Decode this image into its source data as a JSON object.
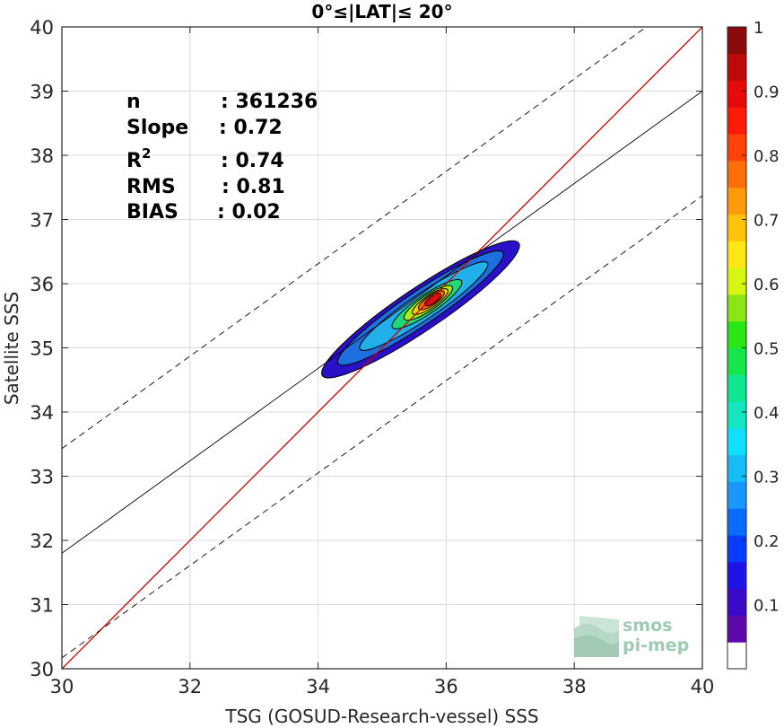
{
  "chart_data": {
    "type": "density-scatter",
    "title": "0°≤|LAT|≤ 20°",
    "xlabel": "TSG (GOSUD-Research-vessel) SSS",
    "ylabel": "Satellite SSS",
    "xlim": [
      30,
      40
    ],
    "ylim": [
      30,
      40
    ],
    "xticks": [
      "30",
      "32",
      "34",
      "36",
      "38",
      "40"
    ],
    "yticks": [
      "30",
      "31",
      "32",
      "33",
      "34",
      "35",
      "36",
      "37",
      "38",
      "39",
      "40"
    ],
    "grid": true,
    "stats": [
      {
        "label": "n",
        "value": ": 361236"
      },
      {
        "label": "Slope",
        "value": ": 0.72"
      },
      {
        "label": "R",
        "sup": "2",
        "value": ": 0.74"
      },
      {
        "label": "RMS",
        "value": ": 0.81"
      },
      {
        "label": "BIAS",
        "value": ": 0.02"
      }
    ],
    "identity_line": {
      "color": "#cc0000",
      "from": [
        30,
        30
      ],
      "to": [
        40,
        40
      ]
    },
    "fit_line": {
      "slope": 0.72,
      "intercept": 10.2
    },
    "fit_bounds_offset": 1.63,
    "density_contours": [
      {
        "level": 0.05,
        "center": [
          35.6,
          35.6
        ],
        "a": 1.85,
        "b": 0.33,
        "color": "#2a10c8"
      },
      {
        "level": 0.15,
        "center": [
          35.6,
          35.62
        ],
        "a": 1.55,
        "b": 0.26,
        "color": "#1e6fe0"
      },
      {
        "level": 0.3,
        "center": [
          35.65,
          35.65
        ],
        "a": 1.2,
        "b": 0.2,
        "color": "#22b0ea"
      },
      {
        "level": 0.5,
        "center": [
          35.7,
          35.68
        ],
        "a": 0.65,
        "b": 0.15,
        "color": "#20d878"
      },
      {
        "level": 0.6,
        "center": [
          35.72,
          35.7
        ],
        "a": 0.45,
        "b": 0.12,
        "color": "#a8ee10"
      },
      {
        "level": 0.7,
        "center": [
          35.75,
          35.72
        ],
        "a": 0.33,
        "b": 0.095,
        "color": "#ffd000"
      },
      {
        "level": 0.8,
        "center": [
          35.77,
          35.74
        ],
        "a": 0.24,
        "b": 0.075,
        "color": "#ff7000"
      },
      {
        "level": 0.9,
        "center": [
          35.79,
          35.75
        ],
        "a": 0.15,
        "b": 0.055,
        "color": "#e01010"
      }
    ],
    "colorbar": {
      "range": [
        0,
        1
      ],
      "ticks": [
        "0.1",
        "0.2",
        "0.3",
        "0.4",
        "0.5",
        "0.6",
        "0.7",
        "0.8",
        "0.9",
        "1"
      ],
      "colors": [
        "#ffffff",
        "#5e0aa8",
        "#3a0ac8",
        "#1e14e6",
        "#0a3cff",
        "#0a6cff",
        "#1a96ff",
        "#16bcf4",
        "#10e0ff",
        "#14e6c0",
        "#10e690",
        "#14e64c",
        "#2ae614",
        "#8ae614",
        "#d8f614",
        "#ffe614",
        "#ffc40a",
        "#ff9a0a",
        "#ff6e0a",
        "#ff420a",
        "#ff1a0a",
        "#e60a0a",
        "#be0a0a",
        "#8a0a0a"
      ]
    },
    "watermark": {
      "line1": "smos",
      "line2": "pi-mep"
    }
  }
}
